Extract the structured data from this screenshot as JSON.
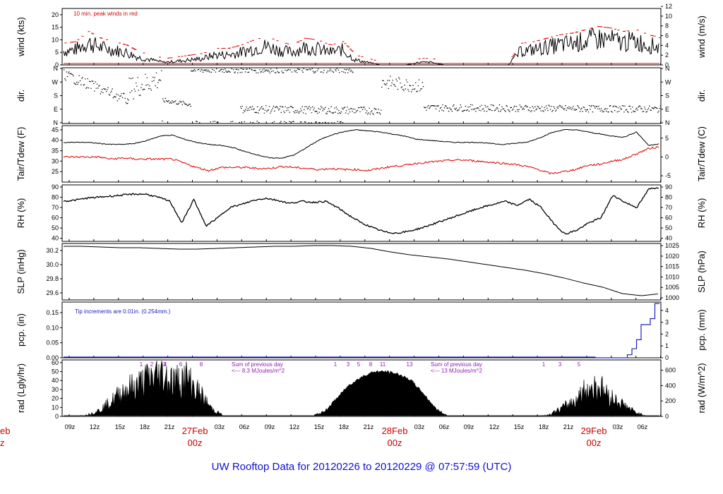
{
  "title": "UW Rooftop Data for 20120226  to  20120229 @ 07:57:59  (UTC)",
  "colors": {
    "red": "#dd0000",
    "blue": "#2020c0",
    "purple": "#9020b0",
    "black": "#000000",
    "title": "#1010d0"
  },
  "x_axis": {
    "hour_ticks": [
      "09z",
      "12z",
      "15z",
      "18z",
      "21z",
      "03z",
      "06z",
      "09z",
      "12z",
      "15z",
      "18z",
      "21z",
      "03z",
      "06z",
      "09z",
      "12z",
      "15z",
      "18z",
      "21z",
      "03z",
      "06z"
    ],
    "day_labels": [
      {
        "date": "27Feb",
        "hour": "00z"
      },
      {
        "date": "28Feb",
        "hour": "00z"
      },
      {
        "date": "29Feb",
        "hour": "00z"
      }
    ],
    "left_cut_labels": {
      "date": "eb",
      "hour": "z"
    }
  },
  "chart_data": [
    {
      "type": "line",
      "id": "wind",
      "ylabel_left": "wind (kts)",
      "ylabel_right": "wind (m/s)",
      "yticks_left": [
        "0",
        "5",
        "10",
        "15",
        "20"
      ],
      "ylim_left": [
        0,
        22.5
      ],
      "yticks_right": [
        "0",
        "2",
        "4",
        "6",
        "8",
        "10",
        "12"
      ],
      "annotation": "10 min. peak winds in red",
      "series": [
        {
          "name": "wind speed",
          "values": [
            5.5,
            6,
            9,
            7,
            6,
            5,
            3,
            2,
            1,
            1.5,
            2,
            2.5,
            4,
            4,
            5,
            6.5,
            7.5,
            6,
            5,
            7,
            6.5,
            5,
            6,
            2,
            1,
            0,
            0,
            0,
            1,
            1,
            0,
            0,
            0,
            0,
            0,
            0,
            5.5,
            6,
            7,
            8,
            8.5,
            9.5,
            10.5,
            10,
            9,
            9.5,
            8,
            7
          ]
        }
      ],
      "peaks_note": "red dashes above trace"
    },
    {
      "type": "scatter",
      "id": "dir",
      "ylabel_left": "dir.",
      "ylabel_right": "dir.",
      "yticks": [
        "N",
        "E",
        "S",
        "W",
        "N"
      ]
    },
    {
      "type": "line",
      "id": "temp",
      "ylabel_left": "Tair/Tdew (F)",
      "ylabel_right": "Tair/Tdew (C)",
      "yticks_left": [
        "25",
        "30",
        "35",
        "40",
        "45"
      ],
      "ylim_left": [
        20,
        47
      ],
      "yticks_right": [
        "-5",
        "0",
        "5"
      ],
      "series": [
        {
          "name": "Tair",
          "values": [
            39,
            39,
            39,
            38.5,
            38,
            38,
            38.5,
            40,
            42,
            42.5,
            40.5,
            39,
            38,
            37.5,
            36.5,
            34.5,
            33,
            31.5,
            31.5,
            33,
            36.5,
            40,
            42.5,
            44,
            45,
            44.5,
            44,
            43,
            42,
            40.5,
            40,
            39.5,
            39,
            39,
            39,
            38.5,
            38,
            38.5,
            39,
            41,
            43.5,
            45,
            45,
            44,
            43,
            42,
            41.5,
            44,
            37.5,
            38.5
          ]
        },
        {
          "name": "Tdew",
          "values": [
            32,
            32,
            32,
            32,
            31,
            31.5,
            31,
            31,
            31,
            31,
            29,
            27,
            25.5,
            27,
            27,
            27,
            26.5,
            26.5,
            27.5,
            27,
            26.5,
            26,
            26.5,
            26,
            26,
            25.5,
            26.5,
            27.5,
            28,
            29,
            29.5,
            30,
            30.5,
            30.5,
            30,
            29.5,
            29,
            28.5,
            27.5,
            26,
            24,
            25,
            26,
            28,
            28.5,
            30,
            31,
            33.5,
            36,
            37
          ]
        }
      ]
    },
    {
      "type": "line",
      "id": "rh",
      "ylabel_left": "RH (%)",
      "ylabel_right": "RH (%)",
      "yticks_left": [
        "40",
        "50",
        "60",
        "70",
        "80",
        "90"
      ],
      "ylim_left": [
        37,
        92
      ],
      "yticks_right": [
        "40",
        "50",
        "60",
        "70",
        "80",
        "90"
      ],
      "series": [
        {
          "name": "RH",
          "values": [
            76,
            77,
            79,
            80,
            81,
            82,
            83,
            83,
            80,
            76,
            55,
            78,
            52,
            60,
            70,
            73,
            77,
            79,
            77,
            74,
            76,
            75,
            76,
            70,
            62,
            55,
            50,
            46,
            45,
            47,
            50,
            54,
            58,
            62,
            66,
            70,
            73,
            76,
            72,
            78,
            70,
            55,
            44,
            48,
            55,
            60,
            82,
            75,
            70,
            88,
            90
          ]
        }
      ]
    },
    {
      "type": "line",
      "id": "slp",
      "ylabel_left": "SLP (inHg)",
      "ylabel_right": "SLP (hPa)",
      "yticks_left": [
        "29.6",
        "29.8",
        "30.0",
        "30.2"
      ],
      "ylim_left": [
        29.5,
        30.3
      ],
      "yticks_right": [
        "1000",
        "1005",
        "1010",
        "1015",
        "1020",
        "1025"
      ],
      "series": [
        {
          "name": "SLP",
          "values": [
            30.26,
            30.26,
            30.25,
            30.24,
            30.24,
            30.23,
            30.22,
            30.22,
            30.23,
            30.24,
            30.25,
            30.26,
            30.26,
            30.27,
            30.27,
            30.26,
            30.23,
            30.18,
            30.14,
            30.11,
            30.08,
            30.04,
            30.0,
            29.96,
            29.92,
            29.87,
            29.81,
            29.74,
            29.68,
            29.59,
            29.56,
            29.59
          ]
        }
      ]
    },
    {
      "type": "line",
      "id": "pcp",
      "ylabel_left": "pcp. (in)",
      "ylabel_right": "pcp. (mm)",
      "yticks_left": [
        "0.00",
        "0.05",
        "0.10",
        "0.15"
      ],
      "ylim_left": [
        0,
        0.185
      ],
      "yticks_right": [
        "0",
        "1",
        "2",
        "3",
        "4"
      ],
      "annotation": "Tip increments are 0.01in. (0.254mm.)",
      "series": [
        {
          "name": "precipitation",
          "values": [
            0,
            0,
            0,
            0,
            0,
            0,
            0,
            0.01,
            0.03,
            0.06,
            0.11,
            0.11,
            0.13,
            0.18,
            0.18
          ]
        }
      ]
    },
    {
      "type": "area",
      "id": "rad",
      "ylabel_left": "rad (Lgly/hr)",
      "ylabel_right": "rad (W/m^2)",
      "yticks_left": [
        "0",
        "10",
        "20",
        "30",
        "40",
        "50",
        "60"
      ],
      "ylim_left": [
        0,
        63
      ],
      "yticks_right": [
        "0",
        "200",
        "400",
        "600"
      ],
      "day_sums": [
        "Sum of previous day\n<--- 8.3 MJoules/m^2",
        "Sum of previous day\n<--- 13 MJoules/m^2"
      ],
      "uv_markers": [
        {
          "labels": [
            "1",
            "2",
            "3",
            "4",
            "6",
            "8"
          ]
        },
        {
          "labels": [
            "1",
            "3",
            "5",
            "8",
            "11",
            "13"
          ]
        },
        {
          "labels": [
            "1",
            "3",
            "5"
          ]
        }
      ],
      "series": [
        {
          "name": "solar radiation",
          "values": [
            0,
            0,
            2,
            8,
            20,
            35,
            40,
            50,
            55,
            45,
            50,
            30,
            10,
            0,
            0,
            0,
            0,
            0,
            0,
            0,
            0,
            5,
            20,
            35,
            44,
            50,
            50,
            47,
            40,
            25,
            8,
            0,
            0,
            0,
            0,
            0,
            0,
            0,
            0,
            2,
            10,
            20,
            35,
            40,
            25,
            15,
            5,
            0,
            0
          ]
        }
      ]
    }
  ]
}
